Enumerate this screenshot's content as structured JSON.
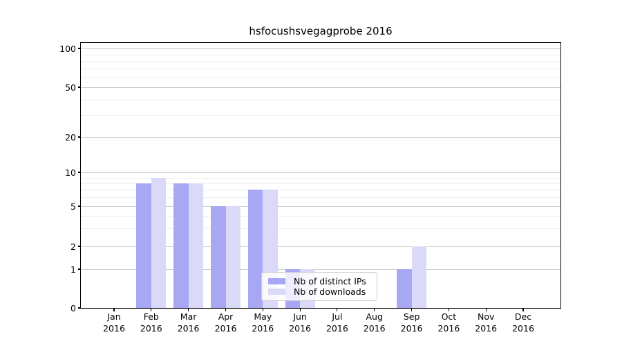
{
  "chart_data": {
    "type": "bar",
    "title": "hsfocushsvegagprobe 2016",
    "categories": [
      "Jan",
      "Feb",
      "Mar",
      "Apr",
      "May",
      "Jun",
      "Jul",
      "Aug",
      "Sep",
      "Oct",
      "Nov",
      "Dec"
    ],
    "category_year": "2016",
    "series": [
      {
        "name": "Nb of distinct IPs",
        "color": "#a7a7f4",
        "values": [
          0,
          8,
          8,
          5,
          7,
          1,
          0,
          0,
          1,
          0,
          0,
          0
        ]
      },
      {
        "name": "Nb of downloads",
        "color": "#dadaf8",
        "values": [
          0,
          9,
          8,
          5,
          7,
          1,
          0,
          0,
          2,
          0,
          0,
          0
        ]
      }
    ],
    "y_axis": {
      "major_ticks": [
        100,
        50,
        20,
        10,
        5,
        2,
        1,
        0
      ],
      "minor_ticks": [
        3,
        4,
        6,
        7,
        8,
        9,
        30,
        40,
        60,
        70,
        80,
        90
      ],
      "scale": "log-like with zero baseline",
      "ylim": [
        0,
        110
      ]
    },
    "x_axis": {
      "label_format": "month over year, two lines"
    },
    "legend": {
      "position": "lower center"
    },
    "grid": {
      "major_color": "#cccccc",
      "minor_color": "#ededed"
    }
  }
}
